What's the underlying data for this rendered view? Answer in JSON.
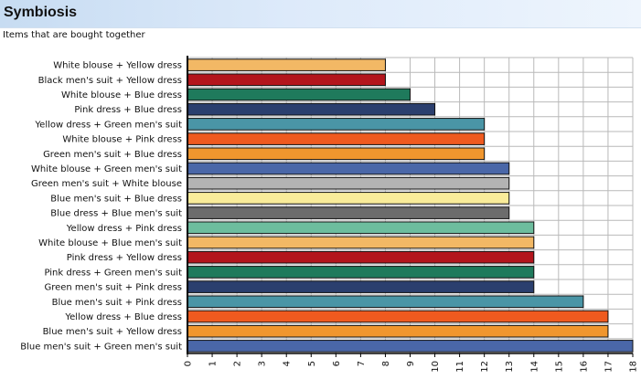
{
  "header": {
    "title": "Symbiosis",
    "subtitle": "Items that are bought together"
  },
  "chart_data": {
    "type": "bar",
    "orientation": "horizontal",
    "title": "",
    "xlabel": "",
    "ylabel": "",
    "xlim": [
      0,
      18
    ],
    "xticks": [
      0,
      1,
      2,
      3,
      4,
      5,
      6,
      7,
      8,
      9,
      10,
      11,
      12,
      13,
      14,
      15,
      16,
      17,
      18
    ],
    "grid": true,
    "categories": [
      "White blouse + Yellow dress",
      "Black men's suit + Yellow dress",
      "White blouse + Blue dress",
      "Pink dress + Blue dress",
      "Yellow dress + Green men's suit",
      "White blouse + Pink dress",
      "Green men's suit + Blue dress",
      "White blouse + Green men's suit",
      "Green men's suit + White blouse",
      "Blue men's suit + Blue dress",
      "Blue dress + Blue men's suit",
      "Yellow dress + Pink dress",
      "White blouse + Blue men's suit",
      "Pink dress + Yellow dress",
      "Pink dress + Green men's suit",
      "Green men's suit + Pink dress",
      "Blue men's suit + Pink dress",
      "Yellow dress + Blue dress",
      "Blue men's suit + Yellow dress",
      "Blue men's suit + Green men's suit"
    ],
    "values": [
      8,
      8,
      9,
      10,
      12,
      12,
      12,
      13,
      13,
      13,
      13,
      14,
      14,
      14,
      14,
      14,
      16,
      17,
      17,
      18
    ],
    "colors": [
      "#f2b865",
      "#b3151c",
      "#1f7a5c",
      "#2b3f6e",
      "#4a95a6",
      "#ef5a1f",
      "#f0962e",
      "#4a67a8",
      "#b3b3b3",
      "#f9ec9a",
      "#6c6c6c",
      "#6dbd9e",
      "#f2b865",
      "#b3151c",
      "#1f7a5c",
      "#2b3f6e",
      "#4a95a6",
      "#ef5a1f",
      "#f0962e",
      "#4a67a8"
    ]
  }
}
